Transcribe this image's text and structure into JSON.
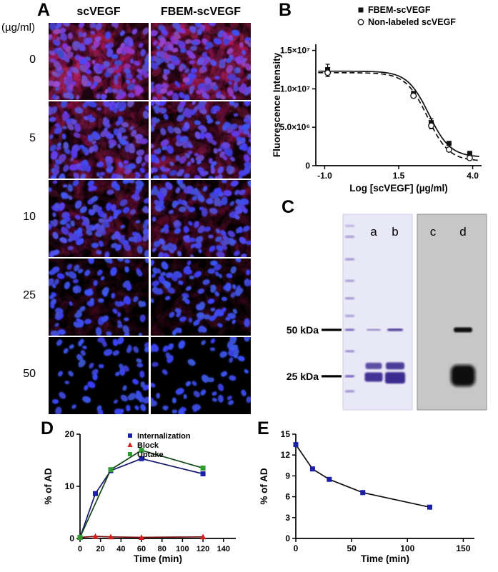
{
  "panels": {
    "A": {
      "letter": "A",
      "unit_label": "(µg/ml)",
      "columns": [
        "scVEGF",
        "FBEM-scVEGF"
      ],
      "rows": [
        {
          "label": "0",
          "cells": 155,
          "red": 0.9
        },
        {
          "label": "5",
          "cells": 140,
          "red": 0.5
        },
        {
          "label": "10",
          "cells": 120,
          "red": 0.28
        },
        {
          "label": "25",
          "cells": 85,
          "red": 0.05
        },
        {
          "label": "50",
          "cells": 60,
          "red": 0.0
        }
      ]
    },
    "B": {
      "letter": "B"
    },
    "C": {
      "letter": "C",
      "lanes": [
        "a",
        "b",
        "c",
        "d"
      ],
      "markers": [
        {
          "label": "50 kDa",
          "yf": 0.591
        },
        {
          "label": "25 kDa",
          "yf": 0.828
        }
      ],
      "gel_left_bg": "#e9e8f6",
      "gel_right_bg": "#c7c7c7",
      "ladder_color": "#6b55b8",
      "band_color_left": "#3b2a8f",
      "band_color_right": "#0a0a0a",
      "ladder": [
        {
          "yf": 0.06,
          "o": 0.35
        },
        {
          "yf": 0.115,
          "o": 0.5
        },
        {
          "yf": 0.23,
          "o": 0.55
        },
        {
          "yf": 0.34,
          "o": 0.5
        },
        {
          "yf": 0.43,
          "o": 0.55
        },
        {
          "yf": 0.52,
          "o": 0.5
        },
        {
          "yf": 0.591,
          "o": 0.85
        },
        {
          "yf": 0.7,
          "o": 0.6
        },
        {
          "yf": 0.828,
          "o": 0.9
        },
        {
          "yf": 0.905,
          "o": 0.6
        }
      ],
      "bands_left": [
        {
          "lane": "a",
          "yf": 0.591,
          "w": 20,
          "h": 3,
          "o": 0.45
        },
        {
          "lane": "a",
          "yf": 0.775,
          "w": 23,
          "h": 9,
          "o": 0.8
        },
        {
          "lane": "a",
          "yf": 0.832,
          "w": 25,
          "h": 13,
          "o": 0.95
        },
        {
          "lane": "b",
          "yf": 0.591,
          "w": 22,
          "h": 4,
          "o": 0.85
        },
        {
          "lane": "b",
          "yf": 0.775,
          "w": 26,
          "h": 10,
          "o": 0.9
        },
        {
          "lane": "b",
          "yf": 0.836,
          "w": 28,
          "h": 16,
          "o": 1
        }
      ],
      "bands_right": [
        {
          "lane": "d",
          "yf": 0.591,
          "w": 26,
          "h": 7,
          "o": 1
        },
        {
          "lane": "d",
          "yf": 0.825,
          "w": 34,
          "h": 30,
          "o": 1
        }
      ]
    },
    "D": {
      "letter": "D"
    },
    "E": {
      "letter": "E"
    }
  },
  "chart_data": [
    {
      "id": "B",
      "type": "scatter",
      "title": "",
      "xlabel": "Log [scVEGF] (µg/ml)",
      "ylabel": "Fluorescence Intensity",
      "xlim": [
        -1.3,
        4.3
      ],
      "ylim": [
        0,
        15800000
      ],
      "grid": false,
      "legend_position": "top",
      "xticks": [
        {
          "v": -1.0,
          "label": "-1.0"
        },
        {
          "v": 1.5,
          "label": "1.5"
        },
        {
          "v": 4.0,
          "label": "4.0"
        }
      ],
      "yticks": [
        {
          "v": 0,
          "label": "0"
        },
        {
          "v": 5000000,
          "label": "5.0×10⁶"
        },
        {
          "v": 10000000,
          "label": "1.0×10⁷"
        },
        {
          "v": 15000000,
          "label": "1.5×10⁷"
        }
      ],
      "series": [
        {
          "name": "FBEM-scVEGF",
          "marker": "square-filled",
          "color": "#111111",
          "line": "solid",
          "lineColor": "#111111",
          "x": [
            -0.9,
            2.0,
            2.6,
            3.2,
            3.9
          ],
          "y": [
            12500000,
            9400000,
            5600000,
            2900000,
            1600000
          ],
          "err": [
            700000,
            0,
            500000,
            0,
            0
          ],
          "fit": {
            "top": 12300000,
            "bottom": 1100000,
            "logec50": 2.52,
            "hill": 1.2
          }
        },
        {
          "name": "Non-labeled scVEGF",
          "marker": "circle-open",
          "color": "#111111",
          "line": "dashed",
          "lineColor": "#111111",
          "x": [
            -0.9,
            2.0,
            2.6,
            3.2,
            3.9
          ],
          "y": [
            12100000,
            9100000,
            5200000,
            2100000,
            1000000
          ],
          "err": [
            500000,
            0,
            400000,
            0,
            0
          ],
          "fit": {
            "top": 12100000,
            "bottom": 600000,
            "logec50": 2.47,
            "hill": 1.2
          }
        }
      ]
    },
    {
      "id": "D",
      "type": "line",
      "title": "",
      "xlabel": "Time (min)",
      "ylabel": "% of AD",
      "xlim": [
        0,
        152
      ],
      "ylim": [
        0,
        20
      ],
      "grid": false,
      "legend_position": "top-inside",
      "xticks": [
        {
          "v": 0,
          "label": "0"
        },
        {
          "v": 20,
          "label": "20"
        },
        {
          "v": 40,
          "label": "40"
        },
        {
          "v": 60,
          "label": "60"
        },
        {
          "v": 80,
          "label": "80"
        },
        {
          "v": 100,
          "label": "100"
        },
        {
          "v": 120,
          "label": "120"
        },
        {
          "v": 140,
          "label": "140"
        }
      ],
      "yticks": [
        {
          "v": 0,
          "label": "0"
        },
        {
          "v": 10,
          "label": "10"
        },
        {
          "v": 20,
          "label": "20"
        }
      ],
      "series": [
        {
          "name": "Internalization",
          "marker": "square-filled",
          "color": "#1b1fa8",
          "line": "solid",
          "lineColor": "#15186e",
          "x": [
            0,
            15,
            30,
            60,
            120
          ],
          "y": [
            0.2,
            8.6,
            13.0,
            15.3,
            12.4
          ]
        },
        {
          "name": "Block",
          "marker": "triangle-filled",
          "color": "#d42020",
          "line": "solid",
          "lineColor": "#7a1010",
          "x": [
            0,
            15,
            30,
            60,
            120
          ],
          "y": [
            0.2,
            0.4,
            0.3,
            0.2,
            0.3
          ]
        },
        {
          "name": "Uptake",
          "marker": "square-filled",
          "color": "#2d9e2d",
          "line": "solid",
          "lineColor": "#14461a",
          "x": [
            0,
            30,
            60,
            120
          ],
          "y": [
            0.2,
            13.2,
            16.9,
            13.5
          ]
        }
      ]
    },
    {
      "id": "E",
      "type": "line",
      "title": "",
      "xlabel": "Time (min)",
      "ylabel": "% of AD",
      "xlim": [
        0,
        160
      ],
      "ylim": [
        0,
        15
      ],
      "grid": false,
      "legend_position": "none",
      "xticks": [
        {
          "v": 0,
          "label": "0"
        },
        {
          "v": 50,
          "label": "50"
        },
        {
          "v": 100,
          "label": "100"
        },
        {
          "v": 150,
          "label": "150"
        }
      ],
      "yticks": [
        {
          "v": 0,
          "label": "0"
        },
        {
          "v": 3,
          "label": "3"
        },
        {
          "v": 6,
          "label": "6"
        },
        {
          "v": 9,
          "label": "9"
        },
        {
          "v": 12,
          "label": "12"
        },
        {
          "v": 15,
          "label": "15"
        }
      ],
      "series": [
        {
          "name": "",
          "marker": "square-filled",
          "color": "#1b1fa8",
          "line": "solid",
          "lineColor": "#111111",
          "x": [
            0,
            15,
            30,
            60,
            120
          ],
          "y": [
            13.5,
            10.0,
            8.5,
            6.6,
            4.5
          ]
        }
      ]
    }
  ]
}
